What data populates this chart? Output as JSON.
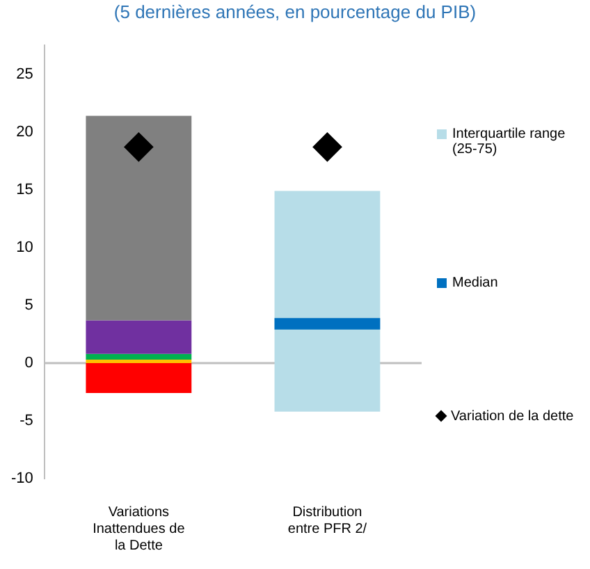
{
  "chart_data": {
    "type": "bar",
    "title": "(5 dernières années, en pourcentage du PIB)",
    "categories": [
      "Variations Inattendues de la Dette",
      "Distribution entre PFR 2/"
    ],
    "series": [
      {
        "color": "#ff0000",
        "values": [
          -2.6,
          null
        ],
        "base": [
          0,
          null
        ]
      },
      {
        "color": "#ffc000",
        "values": [
          0.3,
          null
        ],
        "base": [
          0,
          null
        ]
      },
      {
        "color": "#00b050",
        "values": [
          0.5,
          null
        ],
        "base": [
          0.3,
          null
        ]
      },
      {
        "color": "#7030a0",
        "values": [
          2.9,
          null
        ],
        "base": [
          0.8,
          null
        ]
      },
      {
        "color": "#808080",
        "values": [
          17.7,
          null
        ],
        "base": [
          3.7,
          null
        ]
      },
      {
        "name": "Interquartile range (25-75)",
        "color": "#b7dde8",
        "values": [
          null,
          19.1
        ],
        "base": [
          null,
          -4.2
        ]
      },
      {
        "name": "Median",
        "color": "#0070c0",
        "values": [
          null,
          1.0
        ],
        "base": [
          null,
          2.9
        ]
      },
      {
        "name": "Variation de la dette",
        "type": "scatter",
        "marker": "diamond",
        "color": "#000000",
        "values": [
          18.7,
          18.7
        ]
      }
    ],
    "ylim": [
      -10,
      27.5
    ],
    "yticks": [
      -10,
      -5,
      0,
      5,
      10,
      15,
      20,
      25
    ],
    "ref_lines": [
      {
        "axis": "y",
        "value": 0,
        "color": "#bfbfbf"
      }
    ],
    "grid": false,
    "legend": "right"
  }
}
